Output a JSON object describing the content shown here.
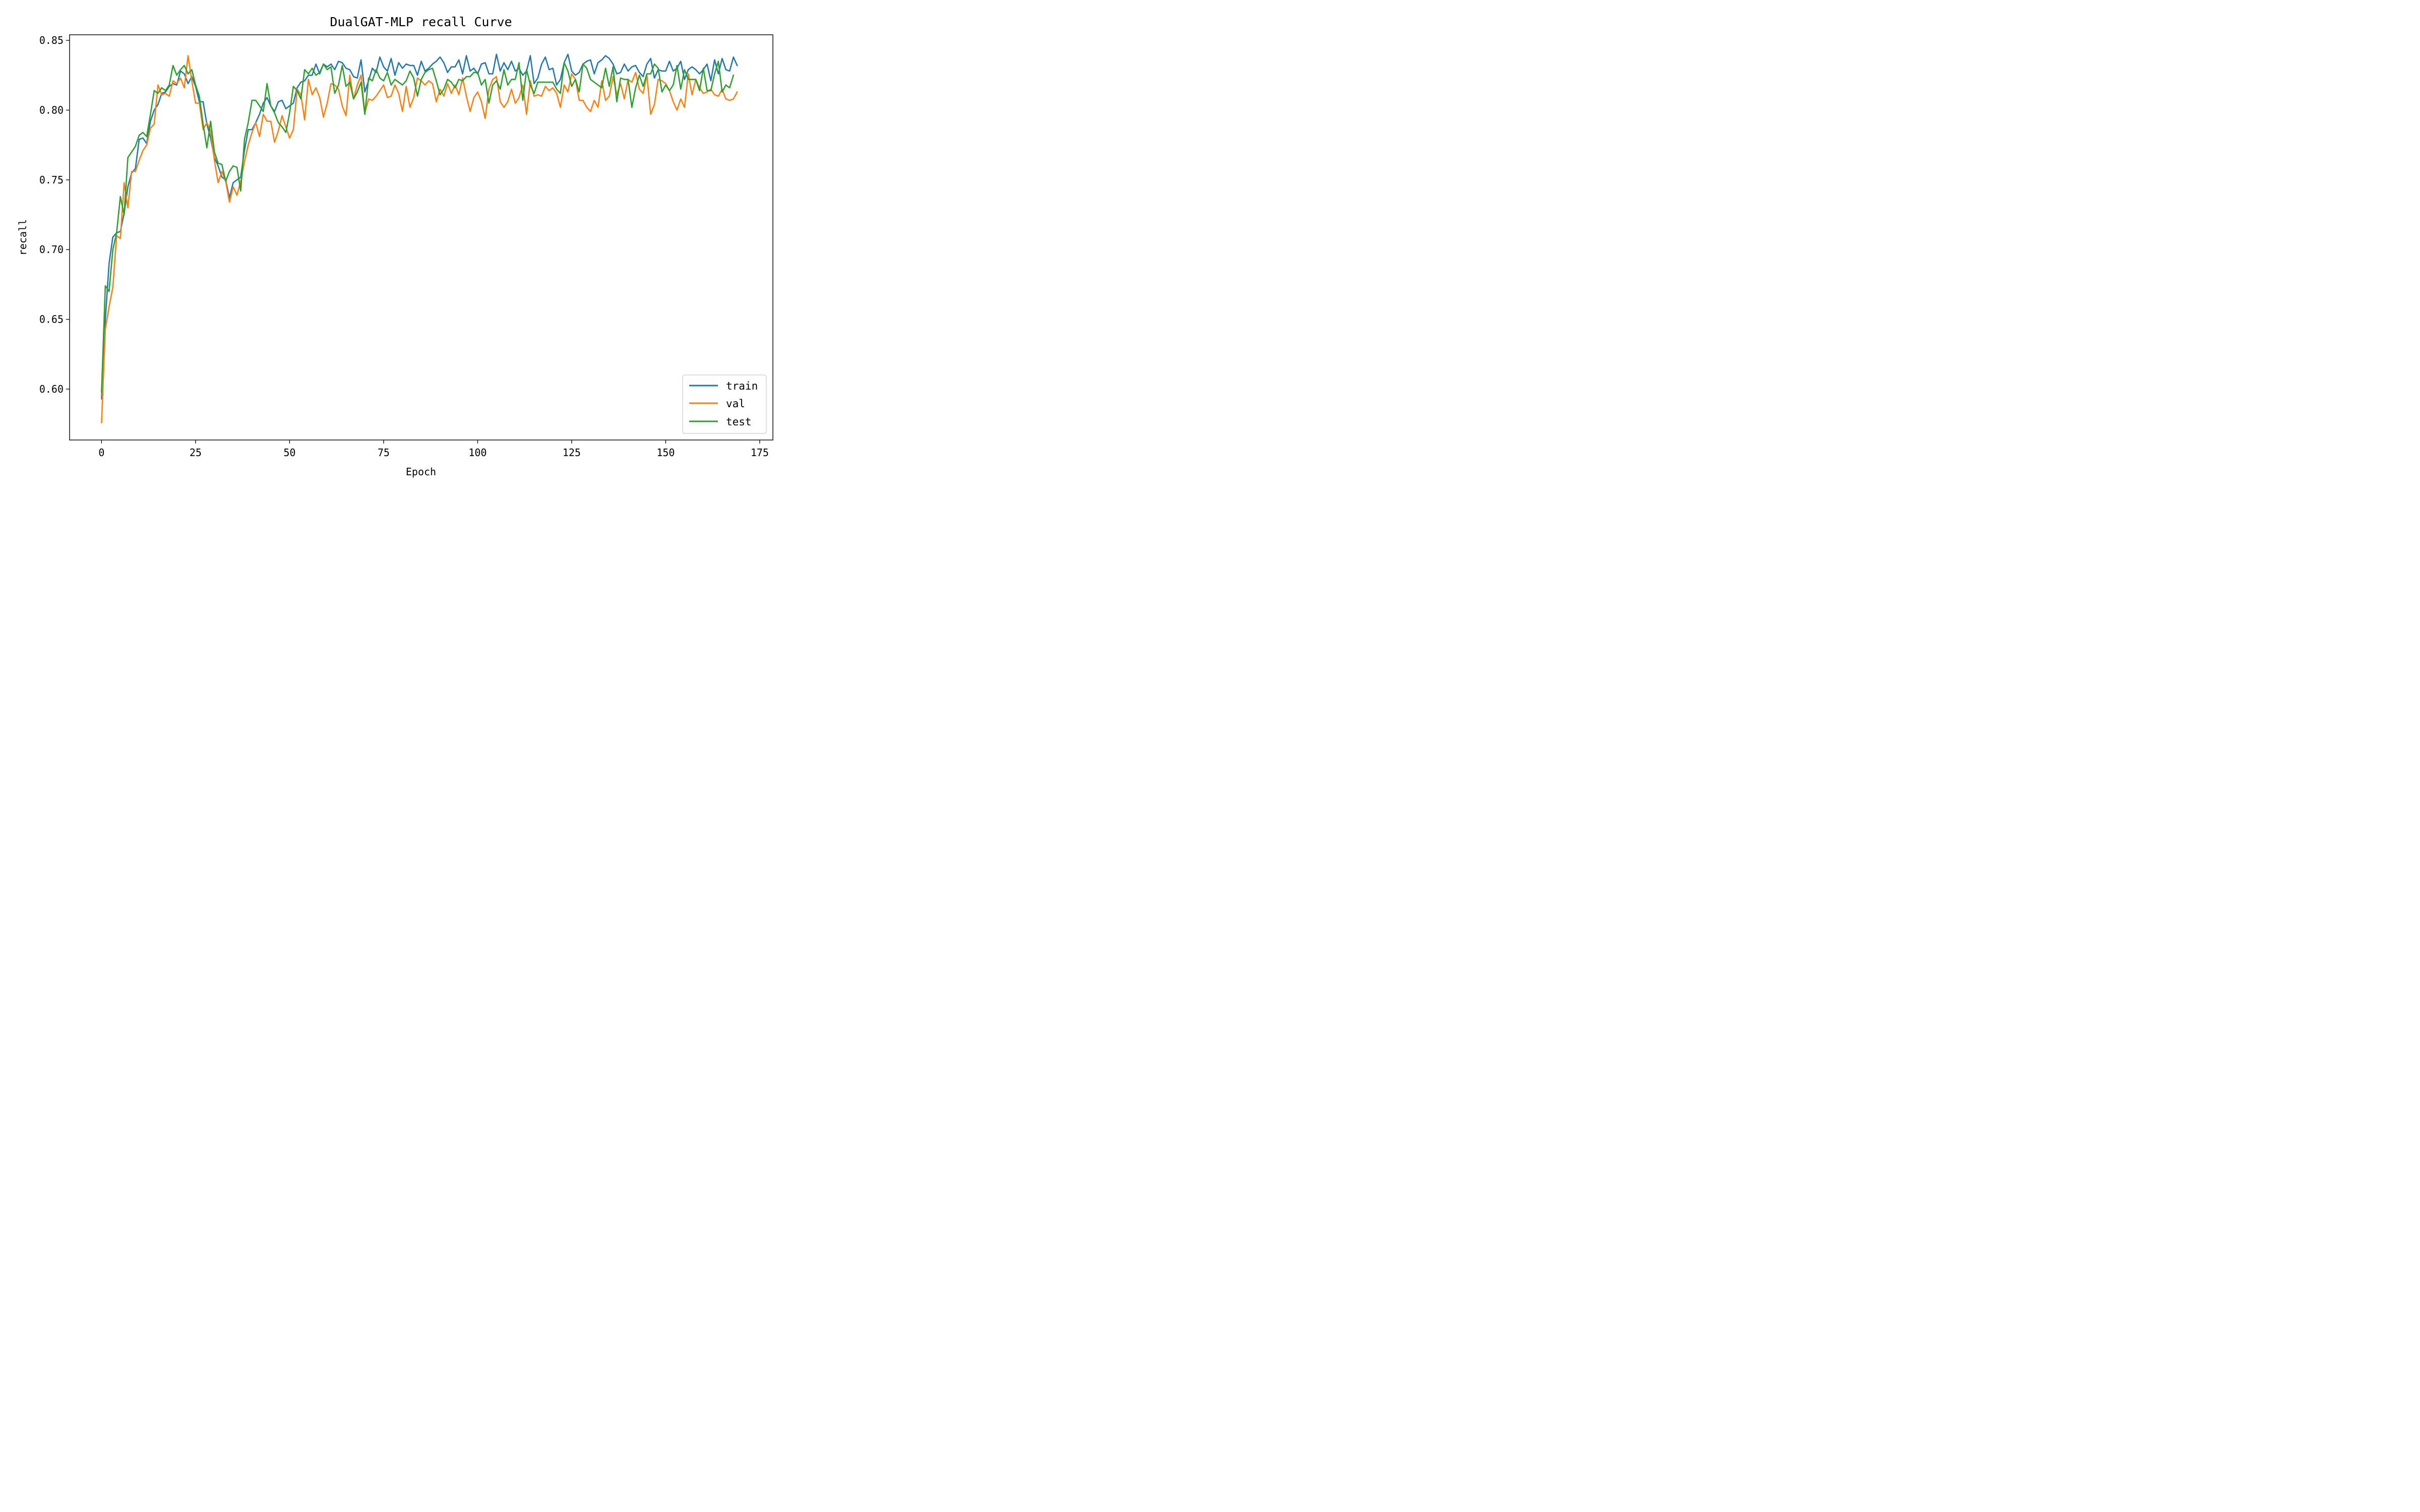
{
  "chart_data": {
    "type": "line",
    "title": "DualGAT-MLP recall Curve",
    "xlabel": "Epoch",
    "ylabel": "recall",
    "xlim": [
      -8.5,
      178.5
    ],
    "ylim": [
      0.5635,
      0.854
    ],
    "xticks": [
      0,
      25,
      50,
      75,
      100,
      125,
      150,
      175
    ],
    "yticks": [
      0.6,
      0.65,
      0.7,
      0.75,
      0.8,
      0.85
    ],
    "xtick_labels": [
      "0",
      "25",
      "50",
      "75",
      "100",
      "125",
      "150",
      "175"
    ],
    "ytick_labels": [
      "0.60",
      "0.65",
      "0.70",
      "0.75",
      "0.80",
      "0.85"
    ],
    "legend_position": "lower-right",
    "grid": false,
    "series": [
      {
        "name": "train",
        "color": "#1f77b4",
        "values": [
          0.593,
          0.65,
          0.69,
          0.709,
          0.712,
          0.713,
          0.726,
          0.745,
          0.755,
          0.758,
          0.779,
          0.78,
          0.776,
          0.792,
          0.8,
          0.804,
          0.812,
          0.813,
          0.817,
          0.819,
          0.818,
          0.828,
          0.826,
          0.819,
          0.824,
          0.817,
          0.806,
          0.806,
          0.79,
          0.78,
          0.766,
          0.76,
          0.752,
          0.75,
          0.737,
          0.748,
          0.75,
          0.752,
          0.771,
          0.786,
          0.786,
          0.791,
          0.797,
          0.805,
          0.809,
          0.803,
          0.799,
          0.806,
          0.807,
          0.801,
          0.803,
          0.805,
          0.816,
          0.82,
          0.821,
          0.825,
          0.825,
          0.833,
          0.826,
          0.833,
          0.831,
          0.833,
          0.829,
          0.835,
          0.834,
          0.83,
          0.829,
          0.824,
          0.823,
          0.836,
          0.813,
          0.821,
          0.83,
          0.827,
          0.838,
          0.831,
          0.828,
          0.837,
          0.825,
          0.834,
          0.83,
          0.833,
          0.832,
          0.832,
          0.825,
          0.835,
          0.828,
          0.83,
          0.833,
          0.835,
          0.838,
          0.834,
          0.827,
          0.831,
          0.831,
          0.836,
          0.826,
          0.839,
          0.828,
          0.83,
          0.826,
          0.833,
          0.834,
          0.826,
          0.826,
          0.84,
          0.828,
          0.834,
          0.829,
          0.835,
          0.828,
          0.83,
          0.825,
          0.828,
          0.839,
          0.819,
          0.823,
          0.833,
          0.838,
          0.829,
          0.83,
          0.818,
          0.822,
          0.834,
          0.84,
          0.828,
          0.825,
          0.827,
          0.833,
          0.835,
          0.836,
          0.826,
          0.834,
          0.836,
          0.839,
          0.837,
          0.833,
          0.826,
          0.827,
          0.833,
          0.828,
          0.831,
          0.832,
          0.827,
          0.824,
          0.833,
          0.837,
          0.823,
          0.829,
          0.828,
          0.828,
          0.835,
          0.828,
          0.83,
          0.835,
          0.822,
          0.829,
          0.831,
          0.829,
          0.826,
          0.829,
          0.833,
          0.821,
          0.836,
          0.826,
          0.837,
          0.829,
          0.828,
          0.838,
          0.832
        ]
      },
      {
        "name": "val",
        "color": "#ff7f0e",
        "values": [
          0.576,
          0.643,
          0.659,
          0.673,
          0.71,
          0.708,
          0.748,
          0.73,
          0.756,
          0.756,
          0.764,
          0.771,
          0.775,
          0.787,
          0.79,
          0.818,
          0.811,
          0.812,
          0.81,
          0.821,
          0.819,
          0.823,
          0.816,
          0.839,
          0.821,
          0.805,
          0.805,
          0.786,
          0.791,
          0.785,
          0.764,
          0.748,
          0.756,
          0.749,
          0.734,
          0.745,
          0.739,
          0.749,
          0.763,
          0.775,
          0.784,
          0.791,
          0.781,
          0.797,
          0.792,
          0.792,
          0.777,
          0.785,
          0.796,
          0.788,
          0.78,
          0.786,
          0.815,
          0.811,
          0.793,
          0.822,
          0.811,
          0.816,
          0.809,
          0.795,
          0.805,
          0.819,
          0.818,
          0.815,
          0.803,
          0.796,
          0.825,
          0.808,
          0.818,
          0.825,
          0.798,
          0.808,
          0.807,
          0.81,
          0.814,
          0.818,
          0.809,
          0.81,
          0.818,
          0.812,
          0.799,
          0.817,
          0.802,
          0.809,
          0.823,
          0.821,
          0.818,
          0.821,
          0.819,
          0.806,
          0.815,
          0.81,
          0.819,
          0.812,
          0.818,
          0.811,
          0.823,
          0.81,
          0.799,
          0.809,
          0.813,
          0.806,
          0.794,
          0.815,
          0.822,
          0.824,
          0.806,
          0.802,
          0.806,
          0.815,
          0.805,
          0.809,
          0.818,
          0.797,
          0.821,
          0.81,
          0.811,
          0.81,
          0.817,
          0.814,
          0.816,
          0.812,
          0.802,
          0.818,
          0.813,
          0.826,
          0.822,
          0.807,
          0.807,
          0.802,
          0.799,
          0.807,
          0.802,
          0.821,
          0.807,
          0.81,
          0.824,
          0.811,
          0.819,
          0.808,
          0.822,
          0.82,
          0.827,
          0.815,
          0.812,
          0.825,
          0.797,
          0.804,
          0.822,
          0.821,
          0.819,
          0.814,
          0.806,
          0.8,
          0.808,
          0.802,
          0.826,
          0.811,
          0.822,
          0.816,
          0.812,
          0.813,
          0.815,
          0.811,
          0.81,
          0.815,
          0.808,
          0.807,
          0.808,
          0.813
        ]
      },
      {
        "name": "test",
        "color": "#2ca02c",
        "values": [
          0.598,
          0.674,
          0.67,
          0.7,
          0.712,
          0.738,
          0.725,
          0.766,
          0.77,
          0.774,
          0.782,
          0.784,
          0.781,
          0.797,
          0.814,
          0.812,
          0.816,
          0.814,
          0.818,
          0.832,
          0.825,
          0.829,
          0.832,
          0.826,
          0.829,
          0.818,
          0.81,
          0.79,
          0.773,
          0.792,
          0.77,
          0.762,
          0.761,
          0.749,
          0.756,
          0.76,
          0.759,
          0.742,
          0.779,
          0.791,
          0.807,
          0.807,
          0.803,
          0.799,
          0.819,
          0.803,
          0.798,
          0.791,
          0.788,
          0.784,
          0.798,
          0.817,
          0.814,
          0.808,
          0.829,
          0.826,
          0.83,
          0.825,
          0.827,
          0.833,
          0.829,
          0.831,
          0.812,
          0.818,
          0.832,
          0.817,
          0.82,
          0.808,
          0.813,
          0.82,
          0.797,
          0.823,
          0.821,
          0.829,
          0.823,
          0.821,
          0.827,
          0.818,
          0.822,
          0.82,
          0.818,
          0.821,
          0.828,
          0.823,
          0.81,
          0.822,
          0.827,
          0.829,
          0.83,
          0.821,
          0.811,
          0.815,
          0.822,
          0.82,
          0.816,
          0.822,
          0.821,
          0.824,
          0.824,
          0.827,
          0.827,
          0.818,
          0.822,
          0.805,
          0.818,
          0.821,
          0.815,
          0.829,
          0.818,
          0.822,
          0.822,
          0.834,
          0.807,
          0.829,
          0.818,
          0.812,
          0.82,
          0.82,
          0.82,
          0.82,
          0.82,
          0.815,
          0.812,
          0.834,
          0.828,
          0.817,
          0.822,
          0.813,
          0.833,
          0.83,
          0.822,
          0.82,
          0.818,
          0.816,
          0.83,
          0.817,
          0.831,
          0.806,
          0.823,
          0.822,
          0.822,
          0.802,
          0.816,
          0.825,
          0.817,
          0.826,
          0.826,
          0.833,
          0.83,
          0.813,
          0.818,
          0.814,
          0.818,
          0.832,
          0.815,
          0.829,
          0.822,
          0.822,
          0.822,
          0.814,
          0.83,
          0.814,
          0.814,
          0.826,
          0.835,
          0.813,
          0.818,
          0.816,
          0.825
        ]
      }
    ]
  }
}
